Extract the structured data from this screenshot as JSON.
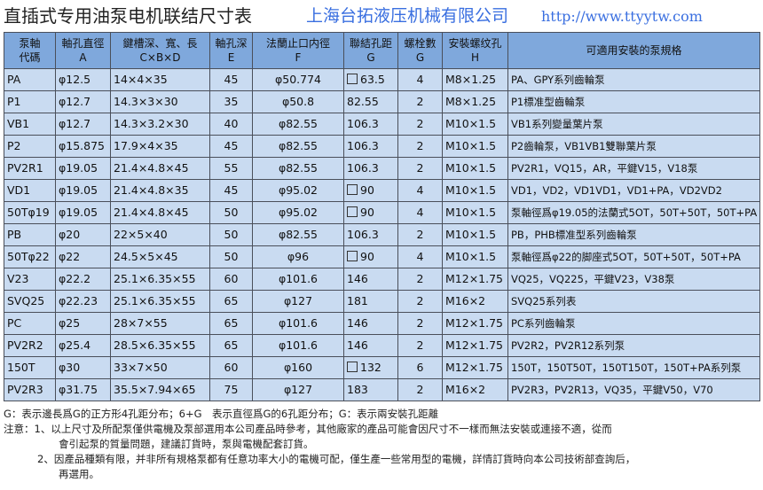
{
  "title": "直插式专用油泵电机联结尺寸表",
  "headers": [
    [
      "泵軸",
      "代碼"
    ],
    [
      "軸孔直徑",
      "A"
    ],
    [
      "鍵槽深、寬、長",
      "C×B×D"
    ],
    [
      "軸孔深",
      "E"
    ],
    [
      "法蘭止口内徑",
      "F"
    ],
    [
      "聯結孔距",
      "G"
    ],
    [
      "螺栓數",
      "G"
    ],
    [
      "安裝螺纹孔",
      "H"
    ],
    [
      "可適用安裝的泵規格",
      ""
    ]
  ],
  "rows": [
    {
      "code": "PA",
      "a": "φ12.5",
      "cbd": "14×4×35",
      "e": "45",
      "f": "φ50.774",
      "g": "63.5",
      "g_square": true,
      "n": "4",
      "h": "M8×1.25",
      "pumps": "PA、GPY系列齒輪泵"
    },
    {
      "code": "P1",
      "a": "φ12.7",
      "cbd": "14.3×3×30",
      "e": "35",
      "f": "φ50.8",
      "g": "82.55",
      "g_square": false,
      "n": "2",
      "h": "M8×1.25",
      "pumps": "P1標准型齒輪泵"
    },
    {
      "code": "VB1",
      "a": "φ12.7",
      "cbd": "14.3×3.2×30",
      "e": "40",
      "f": "φ82.55",
      "g": "106.3",
      "g_square": false,
      "n": "2",
      "h": "M10×1.5",
      "pumps": "VB1系列變量葉片泵"
    },
    {
      "code": "P2",
      "a": "φ15.875",
      "cbd": "17.9×4×35",
      "e": "45",
      "f": "φ82.55",
      "g": "106.3",
      "g_square": false,
      "n": "2",
      "h": "M10×1.5",
      "pumps": "P2齒輪泵，VB1VB1雙聯葉片泵"
    },
    {
      "code": "PV2R1",
      "a": "φ19.05",
      "cbd": "21.4×4.8×45",
      "e": "55",
      "f": "φ82.55",
      "g": "106.3",
      "g_square": false,
      "n": "2",
      "h": "M10×1.5",
      "pumps": "PV2R1，VQ15，AR，平鍵V15，V18泵"
    },
    {
      "code": "VD1",
      "a": "φ19.05",
      "cbd": "21.4×4.8×35",
      "e": "45",
      "f": "φ95.02",
      "g": "90",
      "g_square": true,
      "n": "4",
      "h": "M10×1.5",
      "pumps": "VD1，VD2，VD1VD1，VD1+PA，VD2VD2"
    },
    {
      "code": "50Tφ19",
      "a": "φ19.05",
      "cbd": "21.4×4.8×45",
      "e": "50",
      "f": "φ95.02",
      "g": "90",
      "g_square": true,
      "n": "4",
      "h": "M10×1.5",
      "pumps": "泵軸徑爲φ19.05的法蘭式5OT，50T+50T，50T+PA"
    },
    {
      "code": "PB",
      "a": "φ20",
      "cbd": "22×5×40",
      "e": "50",
      "f": "φ82.55",
      "g": "106.3",
      "g_square": false,
      "n": "2",
      "h": "M10×1.5",
      "pumps": "PB，PHB標准型系列齒輪泵"
    },
    {
      "code": "50Tφ22",
      "a": "φ22",
      "cbd": "24.5×5×45",
      "e": "50",
      "f": "φ96",
      "g": "90",
      "g_square": true,
      "n": "4",
      "h": "M10×1.5",
      "pumps": "泵軸徑爲φ22的脚座式5OT，50T+50T，50T+PA"
    },
    {
      "code": "V23",
      "a": "φ22.2",
      "cbd": "25.1×6.35×55",
      "e": "60",
      "f": "φ101.6",
      "g": "146",
      "g_square": false,
      "n": "2",
      "h": "M12×1.75",
      "pumps": "VQ25，VQ225，平鍵V23，V38泵"
    },
    {
      "code": "SVQ25",
      "a": "φ22.23",
      "cbd": "25.1×6.35×55",
      "e": "65",
      "f": "φ127",
      "g": "181",
      "g_square": false,
      "n": "2",
      "h": "M16×2",
      "pumps": "SVQ25系列表"
    },
    {
      "code": "PC",
      "a": "φ25",
      "cbd": "28×7×55",
      "e": "65",
      "f": "φ101.6",
      "g": "146",
      "g_square": false,
      "n": "2",
      "h": "M12×1.75",
      "pumps": "PC系列齒輪泵"
    },
    {
      "code": "PV2R2",
      "a": "φ25.4",
      "cbd": "28.5×6.35×55",
      "e": "65",
      "f": "φ101.6",
      "g": "146",
      "g_square": false,
      "n": "2",
      "h": "M12×1.75",
      "pumps": "PV2R2，PV2R12系列泵"
    },
    {
      "code": "150T",
      "a": "φ30",
      "cbd": "33×7×50",
      "e": "60",
      "f": "φ160",
      "g": "132",
      "g_square": true,
      "n": "6",
      "h": "M12×1.75",
      "pumps": "150T，150T50T，150T150T，150T+PA系列泵"
    },
    {
      "code": "PV2R3",
      "a": "φ31.75",
      "cbd": "35.5×7.94×65",
      "e": "75",
      "f": "φ127",
      "g": "183",
      "g_square": false,
      "n": "2",
      "h": "M16×2",
      "pumps": "PV2R3，PV2R13，VQ35，平鍵V50，V70"
    }
  ],
  "watermark": {
    "company": "上海台拓液压机械有限公司",
    "url": "http://www.ttyytw.com"
  },
  "notes": {
    "legend": "G：表示邊長爲G的正方形4孔距分布；6+G　表示直徑爲G的6孔距分布；G：表示兩安裝孔距離",
    "note1_a": "注意：1、以上尺寸及所配泵僅供電機及泵部選用本公司產品時參考，其他廠家的產品可能會因尺寸不一樣而無法安裝或連接不適，從而",
    "note1_b": "會引起泵的質量問題，建議訂貨時，泵與電機配套訂貨。",
    "note2_a": "2、因產品種類有限，并非所有規格泵都有任意功率大小的電機可配，僅生產一些常用型的電機，詳情訂貨時向本公司技術部查詢后，",
    "note2_b": "再選用。"
  },
  "colors": {
    "header_bg": "#7fa8dc",
    "cell_bg": "#c9dbf1",
    "watermark": "#3a6fe0"
  }
}
